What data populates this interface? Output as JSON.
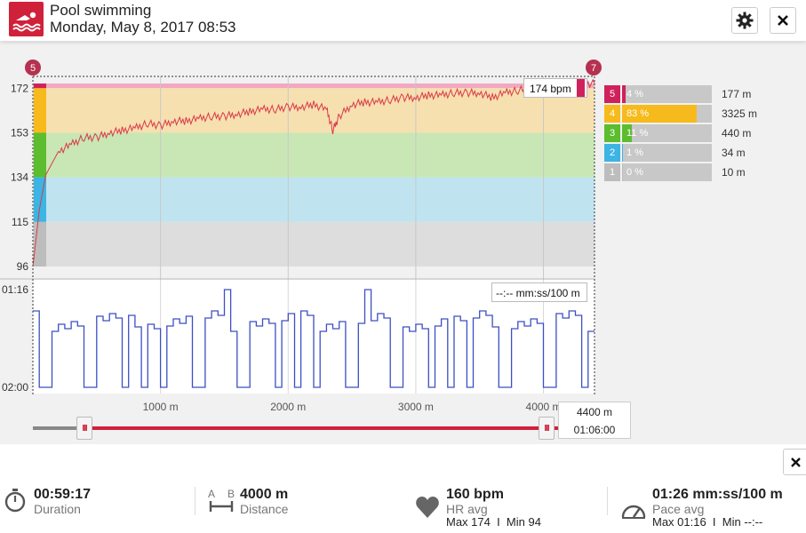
{
  "header": {
    "title": "Pool swimming",
    "datetime": "Monday, May 8, 2017 08:53"
  },
  "chart_data": [
    {
      "type": "area",
      "name": "heart-rate",
      "y_ticks": [
        "172",
        "153",
        "134",
        "115",
        "96"
      ],
      "x_ticks": [
        "1000 m",
        "2000 m",
        "3000 m",
        "4000 m"
      ],
      "zone_bands": [
        {
          "zone": 5,
          "from": 172,
          "to": 174,
          "color": "#f2a8c0"
        },
        {
          "zone": 4,
          "from": 153,
          "to": 172,
          "color": "#f7e0b0"
        },
        {
          "zone": 3,
          "from": 134,
          "to": 153,
          "color": "#c9e7b4"
        },
        {
          "zone": 2,
          "from": 115,
          "to": 134,
          "color": "#bfe4f0"
        },
        {
          "zone": 1,
          "from": 96,
          "to": 115,
          "color": "#dddddd"
        }
      ],
      "hr_points": [
        [
          0,
          96
        ],
        [
          50,
          120
        ],
        [
          100,
          135
        ],
        [
          200,
          145
        ],
        [
          300,
          148
        ],
        [
          400,
          151
        ],
        [
          500,
          151
        ],
        [
          600,
          153
        ],
        [
          700,
          154
        ],
        [
          800,
          155
        ],
        [
          900,
          157
        ],
        [
          1000,
          156
        ],
        [
          1100,
          158
        ],
        [
          1200,
          158
        ],
        [
          1300,
          159
        ],
        [
          1400,
          160
        ],
        [
          1500,
          160
        ],
        [
          1600,
          161
        ],
        [
          1700,
          162
        ],
        [
          1800,
          163
        ],
        [
          1900,
          163
        ],
        [
          2000,
          164
        ],
        [
          2100,
          164
        ],
        [
          2200,
          165
        ],
        [
          2300,
          163
        ],
        [
          2350,
          154
        ],
        [
          2400,
          160
        ],
        [
          2500,
          165
        ],
        [
          2600,
          166
        ],
        [
          2700,
          166
        ],
        [
          2800,
          167
        ],
        [
          2900,
          168
        ],
        [
          3000,
          168
        ],
        [
          3100,
          169
        ],
        [
          3200,
          169
        ],
        [
          3300,
          170
        ],
        [
          3400,
          170
        ],
        [
          3500,
          170
        ],
        [
          3600,
          168
        ],
        [
          3700,
          170
        ],
        [
          3800,
          171
        ],
        [
          3900,
          172
        ],
        [
          4000,
          172
        ],
        [
          4100,
          173
        ],
        [
          4200,
          173
        ],
        [
          4300,
          174
        ],
        [
          4400,
          174
        ]
      ],
      "x_range": [
        0,
        4400
      ],
      "y_range": [
        96,
        174
      ],
      "tooltip": "174 bpm",
      "start_marker": "5",
      "end_marker": "7"
    },
    {
      "type": "line",
      "name": "pace",
      "y_ticks": [
        "01:16",
        "02:00"
      ],
      "tooltip": "--:-- mm:ss/100 m",
      "note": "step line of 100 m split paces"
    }
  ],
  "zones": [
    {
      "num": "5",
      "pct_label": "4 %",
      "pct": 4,
      "dist": "177 m",
      "color": "#d0215c"
    },
    {
      "num": "4",
      "pct_label": "83 %",
      "pct": 83,
      "dist": "3325 m",
      "color": "#f6ba1c"
    },
    {
      "num": "3",
      "pct_label": "11 %",
      "pct": 11,
      "dist": "440 m",
      "color": "#5cbd2e"
    },
    {
      "num": "2",
      "pct_label": "1 %",
      "pct": 1,
      "dist": "34 m",
      "color": "#3cb4e4"
    },
    {
      "num": "1",
      "pct_label": "0 %",
      "pct": 0,
      "dist": "10 m",
      "color": "#bdbdbd"
    }
  ],
  "range": {
    "distance": "4400 m",
    "time": "01:06:00"
  },
  "summary": {
    "duration": {
      "value": "00:59:17",
      "label": "Duration"
    },
    "distance": {
      "value": "4000 m",
      "label": "Distance",
      "icon_a": "A",
      "icon_b": "B"
    },
    "hr": {
      "value": "160 bpm",
      "label": "HR avg",
      "sub": "Max 174  I  Min 94"
    },
    "pace": {
      "value": "01:26 mm:ss/100 m",
      "label": "Pace avg",
      "sub": "Max 01:16  I  Min --:--"
    }
  },
  "icons": {
    "sport": "swimmer-icon",
    "settings": "gear-icon",
    "close": "close-icon"
  }
}
